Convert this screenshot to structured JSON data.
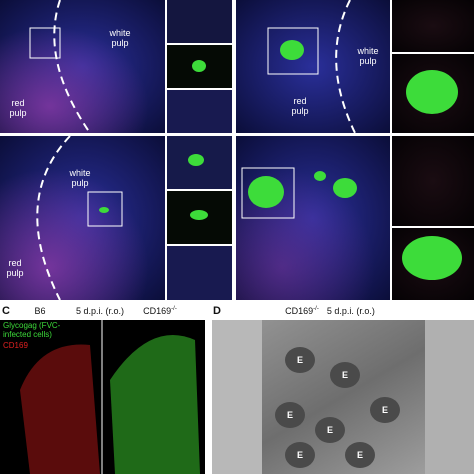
{
  "panel_a": {
    "top": {
      "white_pulp": "white\npulp",
      "red_pulp": "red\npulp"
    },
    "bottom": {
      "white_pulp": "white\npulp",
      "red_pulp": "red\npulp"
    }
  },
  "panel_b": {
    "white_pulp": "white\npulp",
    "red_pulp": "red\npulp"
  },
  "panel_c": {
    "label": "C",
    "col1": "B6",
    "middle": "5 d.p.i. (r.o.)",
    "col2": {
      "text": "CD169",
      "sup": "-/-"
    },
    "legend_green": "Glycogag (FVC-\ninfected cells)",
    "legend_red": "CD169"
  },
  "panel_d": {
    "label": "D",
    "title": {
      "text": "CD169",
      "sup": "-/-",
      "rest": "5 d.p.i. (r.o.)"
    },
    "cells": [
      "E",
      "E",
      "E",
      "E",
      "E",
      "E",
      "E"
    ]
  }
}
